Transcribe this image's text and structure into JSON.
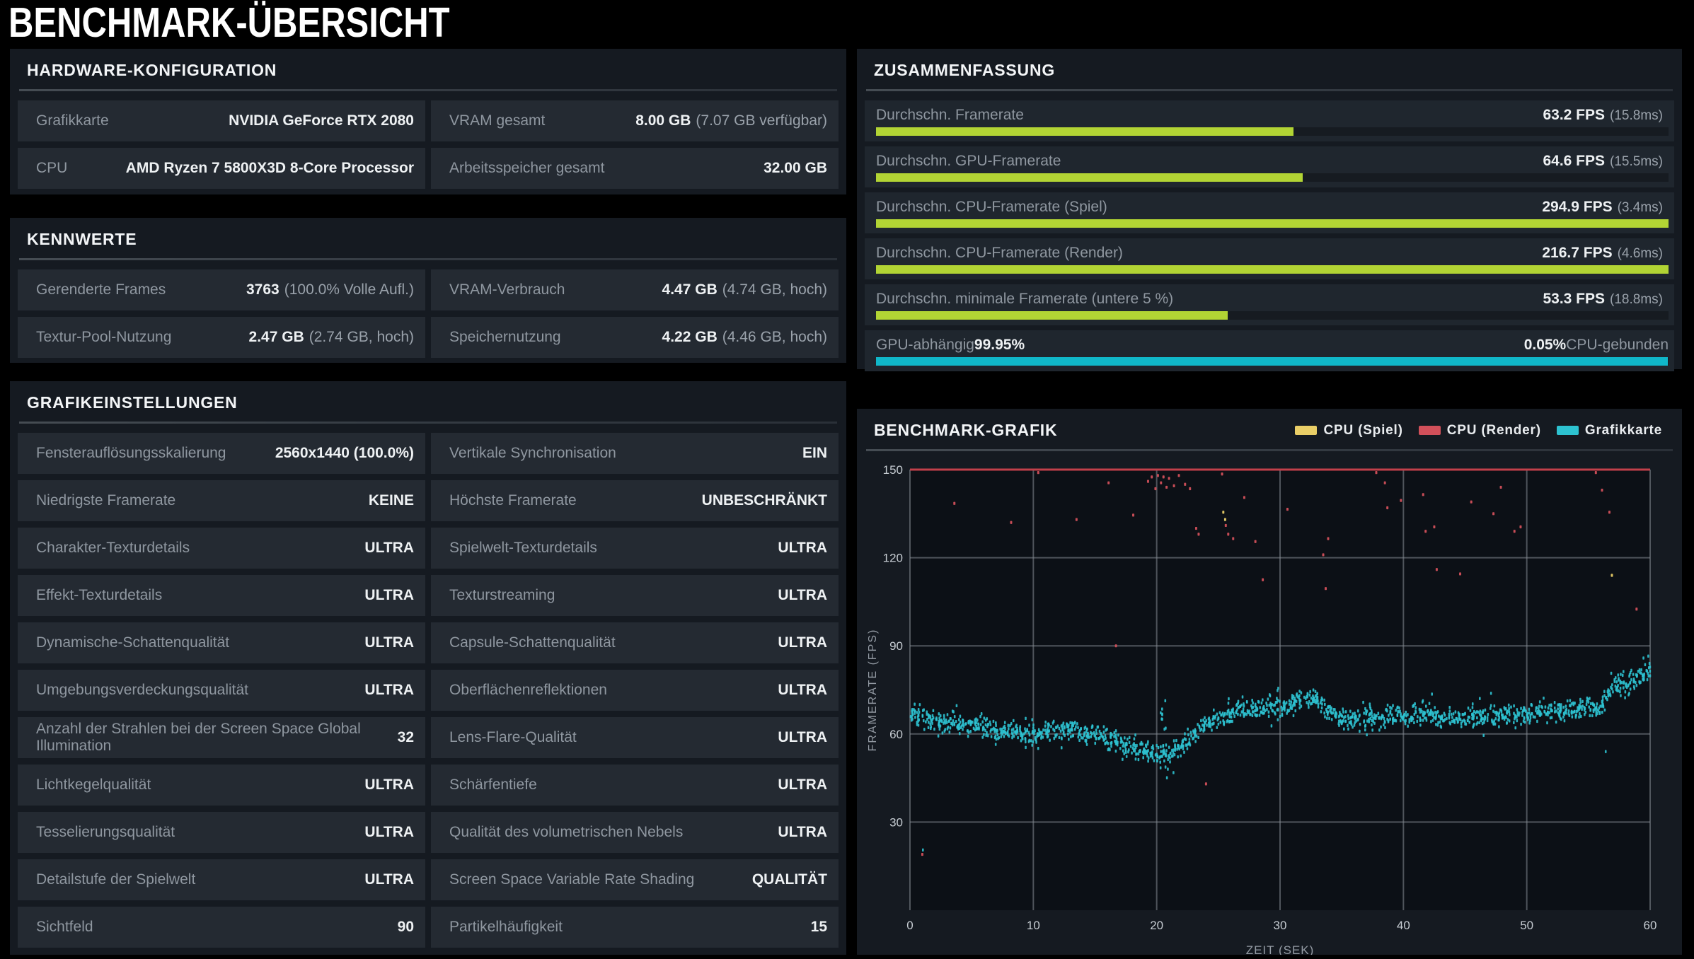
{
  "page": {
    "title": "BENCHMARK-ÜBERSICHT"
  },
  "colors": {
    "panel": "#151a21",
    "cell": "#242a32",
    "summary_row": "#1f262e",
    "label": "#8f97a0",
    "value": "#eef1f3",
    "note": "#9aa2ab",
    "green_bar": "#b2d434",
    "cyan_bar": "#10b7c9",
    "plot_bg": "#0c1016",
    "grid_line": "#868d95",
    "cpu_game": "#e9ce67",
    "cpu_render": "#d2505a",
    "gpu": "#2dc2d0",
    "cap_line": "#c2404a"
  },
  "hardware": {
    "title": "HARDWARE-KONFIGURATION",
    "cells": [
      {
        "label": "Grafikkarte",
        "value": "NVIDIA GeForce RTX 2080",
        "note": ""
      },
      {
        "label": "VRAM gesamt",
        "value": "8.00 GB",
        "note": "(7.07 GB verfügbar)"
      },
      {
        "label": "CPU",
        "value": "AMD Ryzen 7 5800X3D 8-Core Processor",
        "note": ""
      },
      {
        "label": "Arbeitsspeicher gesamt",
        "value": "32.00 GB",
        "note": ""
      }
    ]
  },
  "kennwerte": {
    "title": "KENNWERTE",
    "cells": [
      {
        "label": "Gerenderte Frames",
        "value": "3763",
        "note": "(100.0% Volle Aufl.)"
      },
      {
        "label": "VRAM-Verbrauch",
        "value": "4.47 GB",
        "note": "(4.74 GB, hoch)"
      },
      {
        "label": "Textur-Pool-Nutzung",
        "value": "2.47 GB",
        "note": "(2.74 GB, hoch)"
      },
      {
        "label": "Speichernutzung",
        "value": "4.22 GB",
        "note": "(4.46 GB, hoch)"
      }
    ]
  },
  "settings": {
    "title": "GRAFIKEINSTELLUNGEN",
    "cells": [
      {
        "label": "Fensterauflösungsskalierung",
        "value": "2560x1440 (100.0%)",
        "note": ""
      },
      {
        "label": "Vertikale Synchronisation",
        "value": "EIN",
        "note": ""
      },
      {
        "label": "Niedrigste Framerate",
        "value": "KEINE",
        "note": ""
      },
      {
        "label": "Höchste Framerate",
        "value": "UNBESCHRÄNKT",
        "note": ""
      },
      {
        "label": "Charakter-Texturdetails",
        "value": "ULTRA",
        "note": ""
      },
      {
        "label": "Spielwelt-Texturdetails",
        "value": "ULTRA",
        "note": ""
      },
      {
        "label": "Effekt-Texturdetails",
        "value": "ULTRA",
        "note": ""
      },
      {
        "label": "Texturstreaming",
        "value": "ULTRA",
        "note": ""
      },
      {
        "label": "Dynamische-Schattenqualität",
        "value": "ULTRA",
        "note": ""
      },
      {
        "label": "Capsule-Schattenqualität",
        "value": "ULTRA",
        "note": ""
      },
      {
        "label": "Umgebungsverdeckungsqualität",
        "value": "ULTRA",
        "note": ""
      },
      {
        "label": "Oberflächenreflektionen",
        "value": "ULTRA",
        "note": ""
      },
      {
        "label": "Anzahl der Strahlen bei der Screen Space Global Illumination",
        "value": "32",
        "note": ""
      },
      {
        "label": "Lens-Flare-Qualität",
        "value": "ULTRA",
        "note": ""
      },
      {
        "label": "Lichtkegelqualität",
        "value": "ULTRA",
        "note": ""
      },
      {
        "label": "Schärfentiefe",
        "value": "ULTRA",
        "note": ""
      },
      {
        "label": "Tesselierungsqualität",
        "value": "ULTRA",
        "note": ""
      },
      {
        "label": "Qualität des volumetrischen Nebels",
        "value": "ULTRA",
        "note": ""
      },
      {
        "label": "Detailstufe der Spielwelt",
        "value": "ULTRA",
        "note": ""
      },
      {
        "label": "Screen Space Variable Rate Shading",
        "value": "QUALITÄT",
        "note": ""
      },
      {
        "label": "Sichtfeld",
        "value": "90",
        "note": ""
      },
      {
        "label": "Partikelhäufigkeit",
        "value": "15",
        "note": ""
      }
    ]
  },
  "summary": {
    "title": "ZUSAMMENFASSUNG",
    "rows": [
      {
        "label": "Durchschn. Framerate",
        "value": "63.2 FPS",
        "note": "(15.8ms)",
        "pct": 52.7
      },
      {
        "label": "Durchschn. GPU-Framerate",
        "value": "64.6 FPS",
        "note": "(15.5ms)",
        "pct": 53.8
      },
      {
        "label": "Durchschn. CPU-Framerate (Spiel)",
        "value": "294.9 FPS",
        "note": "(3.4ms)",
        "pct": 100
      },
      {
        "label": "Durchschn. CPU-Framerate (Render)",
        "value": "216.7 FPS",
        "note": "(4.6ms)",
        "pct": 100
      },
      {
        "label": "Durchschn. minimale Framerate (untere 5 %)",
        "value": "53.3 FPS",
        "note": "(18.8ms)",
        "pct": 44.4
      }
    ],
    "bound": {
      "left_label": "GPU-abhängig",
      "left_value": "99.95%",
      "right_value": "0.05%",
      "right_label": "CPU-gebunden",
      "pct": 99.95
    }
  },
  "chart_data": {
    "type": "scatter",
    "title": "BENCHMARK-GRAFIK",
    "xlabel": "ZEIT (SEK)",
    "ylabel": "FRAMERATE (FPS)",
    "xlim": [
      0,
      60
    ],
    "ylim": [
      0,
      150
    ],
    "xticks": [
      0,
      10,
      20,
      30,
      40,
      50,
      60
    ],
    "yticks": [
      30,
      60,
      90,
      120,
      150
    ],
    "grid": true,
    "legend_position": "top-right",
    "legend": [
      {
        "name": "CPU (Spiel)",
        "color": "#e9ce67"
      },
      {
        "name": "CPU (Render)",
        "color": "#d2505a"
      },
      {
        "name": "Grafikkarte",
        "color": "#2dc2d0"
      }
    ],
    "series": [
      {
        "name": "CPU (Spiel)",
        "color": "#e9ce67",
        "points": [
          [
            25.4,
            135.5
          ],
          [
            25.55,
            133.0
          ],
          [
            56.9,
            114.0
          ]
        ]
      },
      {
        "name": "CPU (Render)",
        "color": "#d2505a",
        "cap_line": 150,
        "points": [
          [
            1.0,
            19.0
          ],
          [
            3.6,
            138.5
          ],
          [
            8.2,
            132.0
          ],
          [
            10.4,
            149.0
          ],
          [
            13.5,
            133.0
          ],
          [
            16.1,
            145.5
          ],
          [
            16.7,
            90.0
          ],
          [
            18.1,
            134.5
          ],
          [
            19.3,
            146.0
          ],
          [
            19.6,
            147.5
          ],
          [
            19.9,
            143.5
          ],
          [
            20.1,
            148.0
          ],
          [
            20.35,
            145.5
          ],
          [
            20.55,
            147.5
          ],
          [
            20.8,
            144.0
          ],
          [
            21.0,
            147.0
          ],
          [
            21.4,
            144.5
          ],
          [
            21.8,
            148.0
          ],
          [
            22.3,
            145.0
          ],
          [
            22.7,
            143.5
          ],
          [
            23.2,
            130.0
          ],
          [
            23.4,
            128.0
          ],
          [
            24.0,
            43.0
          ],
          [
            25.3,
            148.5
          ],
          [
            25.6,
            131.0
          ],
          [
            25.8,
            128.0
          ],
          [
            26.2,
            126.5
          ],
          [
            27.1,
            140.5
          ],
          [
            28.0,
            125.5
          ],
          [
            28.6,
            112.5
          ],
          [
            30.6,
            136.5
          ],
          [
            33.5,
            121.0
          ],
          [
            33.7,
            109.5
          ],
          [
            33.9,
            126.5
          ],
          [
            37.8,
            149.0
          ],
          [
            38.5,
            145.5
          ],
          [
            38.7,
            137.0
          ],
          [
            39.8,
            139.5
          ],
          [
            41.6,
            141.5
          ],
          [
            41.8,
            129.0
          ],
          [
            42.5,
            130.5
          ],
          [
            42.7,
            116.0
          ],
          [
            44.6,
            114.5
          ],
          [
            45.5,
            139.0
          ],
          [
            47.3,
            135.0
          ],
          [
            47.9,
            144.0
          ],
          [
            49.0,
            129.0
          ],
          [
            49.5,
            130.5
          ],
          [
            55.6,
            149.0
          ],
          [
            56.1,
            143.0
          ],
          [
            56.7,
            135.5
          ],
          [
            58.9,
            102.5
          ]
        ]
      },
      {
        "name": "Grafikkarte",
        "color": "#2dc2d0",
        "band": {
          "x_step": 1,
          "points_per_sec": 28,
          "spread": 3.2,
          "centers": [
            67.0,
            66.0,
            64.5,
            64.0,
            63.5,
            63.0,
            62.5,
            62.0,
            61.0,
            60.5,
            60.5,
            61.0,
            61.5,
            62.0,
            60.5,
            59.5,
            58.5,
            57.5,
            56.0,
            54.5,
            53.5,
            53.0,
            56.0,
            60.0,
            63.5,
            65.5,
            66.5,
            69.0,
            68.0,
            69.5,
            68.5,
            71.0,
            72.5,
            71.5,
            67.5,
            65.5,
            64.5,
            66.0,
            65.5,
            66.5,
            66.0,
            67.5,
            67.0,
            66.0,
            65.5,
            65.5,
            66.0,
            65.5,
            67.0,
            66.0,
            67.0,
            68.0,
            67.0,
            68.5,
            68.0,
            69.5,
            68.0,
            77.5,
            76.5,
            79.5,
            81.5
          ],
          "spike": {
            "x": 20.55,
            "x_jitter": 0.3,
            "y_min": 44,
            "y_max": 74,
            "count": 16
          },
          "outliers": [
            [
              1.05,
              20.5
            ],
            [
              56.4,
              54.0
            ],
            [
              59.85,
              86.5
            ],
            [
              59.95,
              84.0
            ]
          ]
        }
      }
    ]
  }
}
